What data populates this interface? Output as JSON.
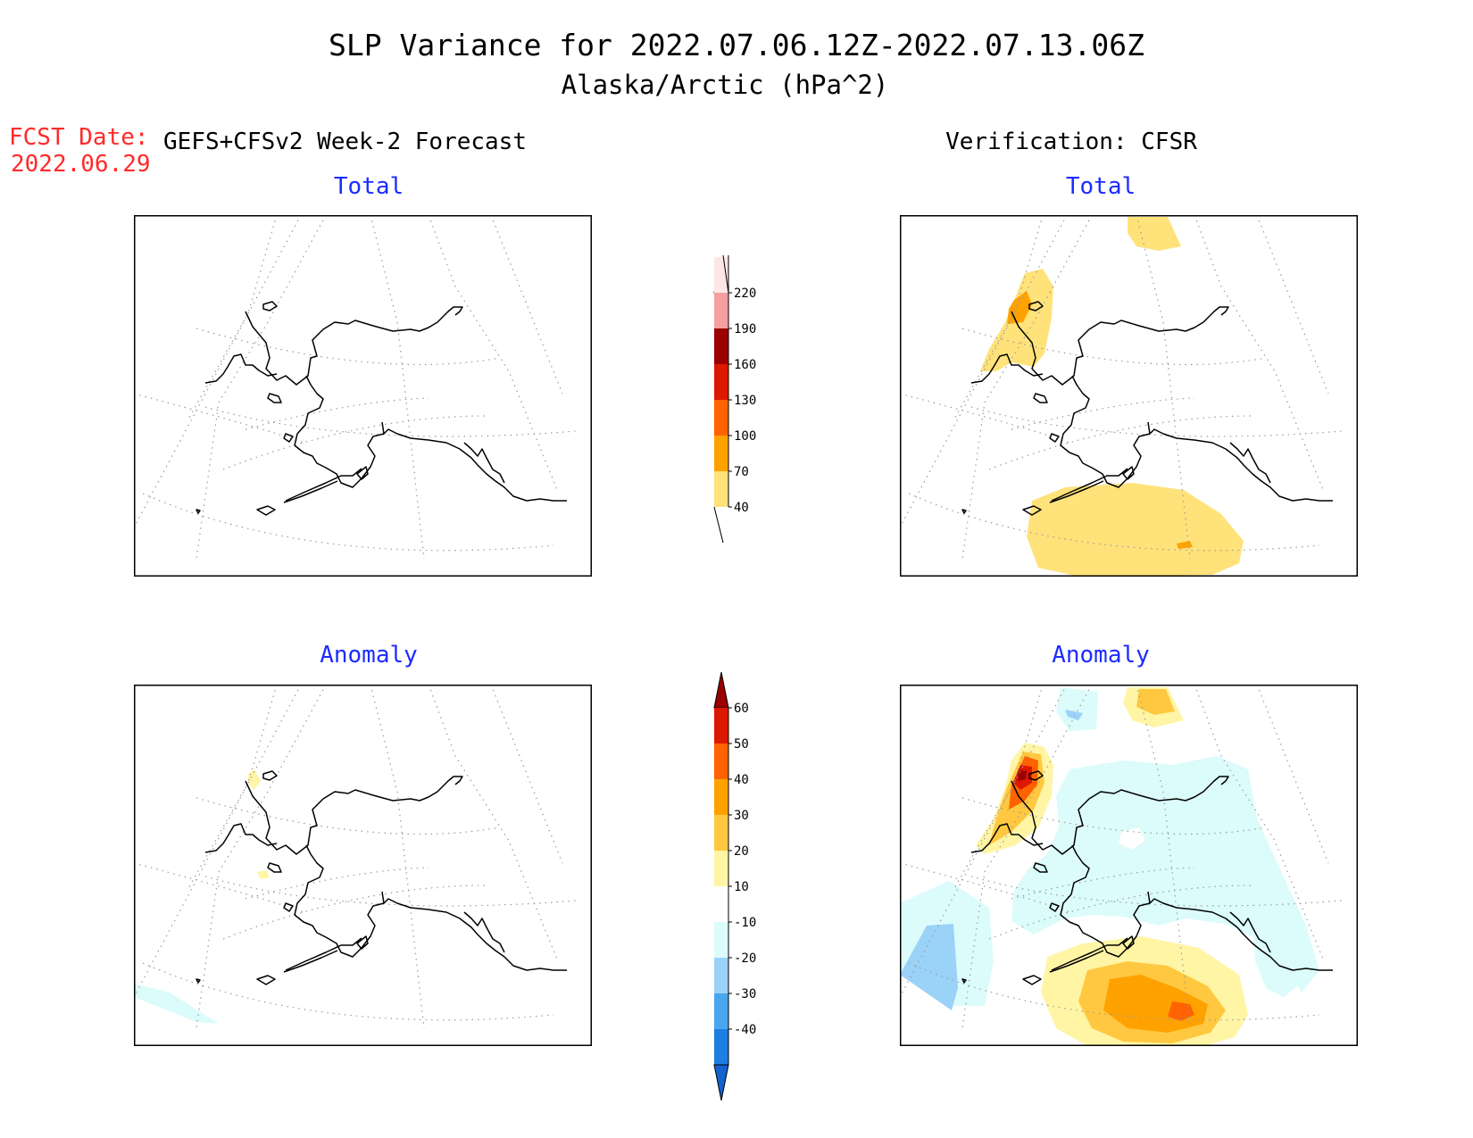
{
  "header": {
    "title": "SLP Variance for 2022.07.06.12Z-2022.07.13.06Z",
    "subtitle": "Alaska/Arctic (hPa^2)",
    "fcst_date_label": "FCST Date:",
    "fcst_date_value": "2022.06.29",
    "left_column_title": "GEFS+CFSv2 Week-2 Forecast",
    "right_column_title": "Verification: CFSR"
  },
  "panels": {
    "forecast_total_title": "Total",
    "forecast_anomaly_title": "Anomaly",
    "verification_total_title": "Total",
    "verification_anomaly_title": "Anomaly"
  },
  "colorbars": {
    "total": {
      "labels": [
        "220",
        "190",
        "160",
        "130",
        "100",
        "70",
        "40"
      ],
      "colors": [
        "#ffe6e6",
        "#f4a0a0",
        "#9a0000",
        "#dd1800",
        "#ff6200",
        "#ffa200",
        "#ffe27a"
      ]
    },
    "anomaly": {
      "labels": [
        "60",
        "50",
        "40",
        "30",
        "20",
        "10",
        "-10",
        "-20",
        "-30",
        "-40"
      ],
      "colors": [
        "#9a0000",
        "#dd1800",
        "#ff6200",
        "#ffa200",
        "#ffc840",
        "#fff5a5",
        "#ffffff",
        "#dcfbfb",
        "#9bd2f8",
        "#4aa6ee",
        "#1c7ee0",
        "#1262d0"
      ]
    }
  },
  "style": {
    "title_color": "#000000",
    "panel_title_color": "#1c2cff",
    "fcst_date_color": "#ff2a2a",
    "grid_color": "#9a9a9a"
  }
}
